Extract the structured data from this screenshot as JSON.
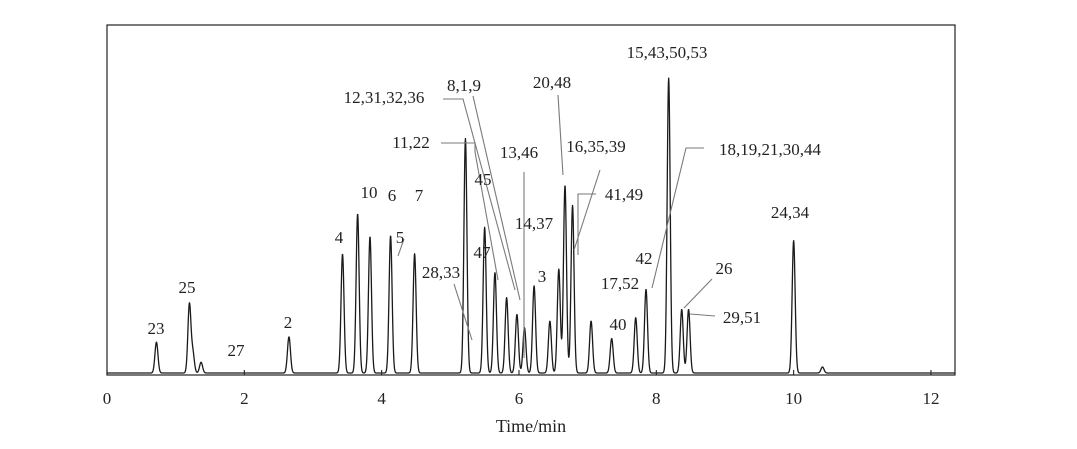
{
  "chart_data": {
    "type": "line",
    "title": "",
    "xlabel": "Time/min",
    "ylabel": "",
    "xlim": [
      0,
      12.35
    ],
    "ylim": [
      0,
      1.0
    ],
    "grid": false,
    "x_ticks": [
      "0",
      "2",
      "4",
      "6",
      "8",
      "10",
      "12"
    ],
    "line_color": "#1a1a1a",
    "leader_color": "#7a7a7a",
    "peaks": [
      {
        "t": 0.72,
        "h": 0.092
      },
      {
        "t": 1.2,
        "h": 0.205
      },
      {
        "t": 1.25,
        "h": 0.06
      },
      {
        "t": 1.37,
        "h": 0.032
      },
      {
        "t": 2.65,
        "h": 0.108
      },
      {
        "t": 3.43,
        "h": 0.355
      },
      {
        "t": 3.65,
        "h": 0.475
      },
      {
        "t": 3.83,
        "h": 0.407
      },
      {
        "t": 4.13,
        "h": 0.41
      },
      {
        "t": 4.48,
        "h": 0.356
      },
      {
        "t": 5.22,
        "h": 0.7
      },
      {
        "t": 5.5,
        "h": 0.435
      },
      {
        "t": 5.65,
        "h": 0.3
      },
      {
        "t": 5.82,
        "h": 0.225
      },
      {
        "t": 5.97,
        "h": 0.175
      },
      {
        "t": 6.08,
        "h": 0.135
      },
      {
        "t": 6.22,
        "h": 0.26
      },
      {
        "t": 6.45,
        "h": 0.155
      },
      {
        "t": 6.58,
        "h": 0.31
      },
      {
        "t": 6.67,
        "h": 0.56
      },
      {
        "t": 6.78,
        "h": 0.5
      },
      {
        "t": 7.05,
        "h": 0.155
      },
      {
        "t": 7.35,
        "h": 0.103
      },
      {
        "t": 7.7,
        "h": 0.165
      },
      {
        "t": 7.85,
        "h": 0.25
      },
      {
        "t": 8.18,
        "h": 0.88
      },
      {
        "t": 8.37,
        "h": 0.19
      },
      {
        "t": 8.47,
        "h": 0.19
      },
      {
        "t": 10.0,
        "h": 0.395
      },
      {
        "t": 10.42,
        "h": 0.018
      }
    ],
    "annotations": [
      {
        "text": "23",
        "t": 0.72
      },
      {
        "text": "25",
        "t": 1.2
      },
      {
        "text": "27",
        "t": 1.37
      },
      {
        "text": "2",
        "t": 2.65
      },
      {
        "text": "4",
        "t": 3.43
      },
      {
        "text": "10",
        "t": 3.65
      },
      {
        "text": "6",
        "t": 3.83
      },
      {
        "text": "5",
        "t": 4.13
      },
      {
        "text": "7",
        "t": 4.48
      },
      {
        "text": "28,33",
        "t": 5.22
      },
      {
        "text": "12,31,32,36",
        "t": 5.5
      },
      {
        "text": "8,1,9",
        "t": 5.65
      },
      {
        "text": "11,22",
        "t": 5.82
      },
      {
        "text": "45",
        "t": 5.65
      },
      {
        "text": "47",
        "t": 5.97
      },
      {
        "text": "13,46",
        "t": 6.08
      },
      {
        "text": "3",
        "t": 6.22
      },
      {
        "text": "14,37",
        "t": 6.58
      },
      {
        "text": "20,48",
        "t": 6.67
      },
      {
        "text": "16,35,39",
        "t": 6.58
      },
      {
        "text": "41,49",
        "t": 6.78
      },
      {
        "text": "40",
        "t": 7.35
      },
      {
        "text": "17,52",
        "t": 7.7
      },
      {
        "text": "42",
        "t": 7.85
      },
      {
        "text": "15,43,50,53",
        "t": 8.18
      },
      {
        "text": "18,19,21,30,44",
        "t": 8.37
      },
      {
        "text": "26",
        "t": 8.37
      },
      {
        "text": "29,51",
        "t": 8.47
      },
      {
        "text": "24,34",
        "t": 10.0
      }
    ]
  }
}
